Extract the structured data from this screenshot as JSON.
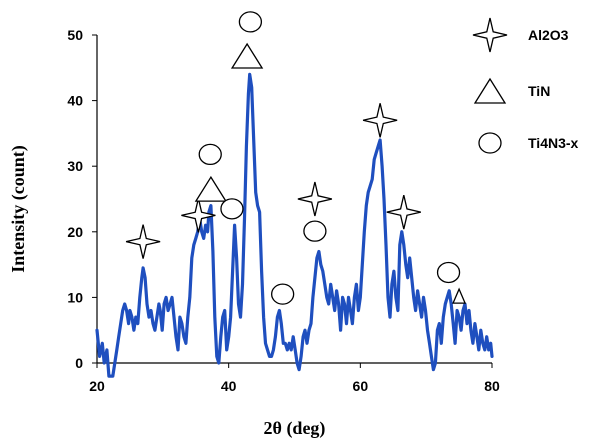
{
  "chart_data": {
    "type": "line",
    "title": "",
    "xlabel": "2θ (deg)",
    "ylabel": "Intensity (count)",
    "xlim": [
      20,
      80
    ],
    "ylim": [
      0,
      50
    ],
    "xticks": [
      20,
      40,
      60,
      80
    ],
    "yticks": [
      0,
      10,
      20,
      30,
      40,
      50
    ],
    "grid": false,
    "legend_position": "top-right",
    "line_color": "#1f4fbf",
    "marker_color": "#000000",
    "legend": [
      {
        "label": "Al2O3",
        "shape": "star4"
      },
      {
        "label": "TiN",
        "shape": "triangle"
      },
      {
        "label": "Ti4N3-x",
        "shape": "circle"
      }
    ],
    "series": [
      {
        "color": "#1f4fbf",
        "points": [
          [
            20.0,
            5
          ],
          [
            20.4,
            1
          ],
          [
            20.8,
            3
          ],
          [
            21.1,
            0
          ],
          [
            21.5,
            2
          ],
          [
            21.8,
            -2
          ],
          [
            22.1,
            -2
          ],
          [
            22.4,
            -2
          ],
          [
            22.7,
            0
          ],
          [
            23.0,
            2
          ],
          [
            23.3,
            4
          ],
          [
            23.6,
            6
          ],
          [
            23.9,
            8
          ],
          [
            24.2,
            9
          ],
          [
            24.5,
            8
          ],
          [
            24.8,
            6
          ],
          [
            25.0,
            8
          ],
          [
            25.3,
            7
          ],
          [
            25.6,
            5
          ],
          [
            25.9,
            7
          ],
          [
            26.2,
            6
          ],
          [
            26.5,
            10
          ],
          [
            26.8,
            13
          ],
          [
            27.0,
            14.5
          ],
          [
            27.3,
            13
          ],
          [
            27.6,
            9
          ],
          [
            27.9,
            7
          ],
          [
            28.2,
            8
          ],
          [
            28.5,
            6
          ],
          [
            28.8,
            5
          ],
          [
            29.1,
            7
          ],
          [
            29.4,
            9
          ],
          [
            29.6,
            8
          ],
          [
            29.9,
            5
          ],
          [
            30.2,
            9
          ],
          [
            30.5,
            10
          ],
          [
            30.8,
            8
          ],
          [
            31.1,
            9
          ],
          [
            31.4,
            10
          ],
          [
            31.7,
            7
          ],
          [
            32.0,
            4
          ],
          [
            32.3,
            2
          ],
          [
            32.6,
            7
          ],
          [
            32.9,
            6
          ],
          [
            33.2,
            4
          ],
          [
            33.5,
            3
          ],
          [
            33.8,
            7
          ],
          [
            34.1,
            10
          ],
          [
            34.4,
            16
          ],
          [
            34.7,
            18
          ],
          [
            35.0,
            19
          ],
          [
            35.3,
            20
          ],
          [
            35.6,
            22
          ],
          [
            35.9,
            20
          ],
          [
            36.2,
            19
          ],
          [
            36.5,
            21
          ],
          [
            36.8,
            20
          ],
          [
            37.0,
            23
          ],
          [
            37.3,
            24
          ],
          [
            37.6,
            17
          ],
          [
            37.9,
            7
          ],
          [
            38.2,
            1
          ],
          [
            38.5,
            0
          ],
          [
            38.8,
            4
          ],
          [
            39.1,
            7
          ],
          [
            39.4,
            8
          ],
          [
            39.7,
            2
          ],
          [
            40.0,
            4
          ],
          [
            40.3,
            7
          ],
          [
            40.6,
            14
          ],
          [
            40.9,
            21
          ],
          [
            41.2,
            16
          ],
          [
            41.5,
            9
          ],
          [
            41.8,
            7
          ],
          [
            42.1,
            12
          ],
          [
            42.4,
            22
          ],
          [
            42.7,
            33
          ],
          [
            43.0,
            41
          ],
          [
            43.2,
            44
          ],
          [
            43.5,
            42
          ],
          [
            43.8,
            34
          ],
          [
            44.1,
            26
          ],
          [
            44.4,
            24
          ],
          [
            44.7,
            23
          ],
          [
            45.0,
            14
          ],
          [
            45.3,
            7
          ],
          [
            45.6,
            3
          ],
          [
            45.9,
            2
          ],
          [
            46.2,
            1
          ],
          [
            46.5,
            1
          ],
          [
            46.8,
            2
          ],
          [
            47.1,
            4
          ],
          [
            47.4,
            7
          ],
          [
            47.7,
            8
          ],
          [
            48.0,
            6
          ],
          [
            48.3,
            3
          ],
          [
            48.6,
            3
          ],
          [
            48.9,
            2
          ],
          [
            49.2,
            3
          ],
          [
            49.5,
            2
          ],
          [
            49.8,
            4
          ],
          [
            50.1,
            2
          ],
          [
            50.4,
            0
          ],
          [
            50.7,
            -1
          ],
          [
            51.0,
            1
          ],
          [
            51.3,
            4
          ],
          [
            51.6,
            5
          ],
          [
            51.9,
            3
          ],
          [
            52.2,
            5
          ],
          [
            52.5,
            6
          ],
          [
            52.8,
            10
          ],
          [
            53.1,
            13
          ],
          [
            53.4,
            16
          ],
          [
            53.7,
            17
          ],
          [
            54.0,
            15
          ],
          [
            54.3,
            14
          ],
          [
            54.6,
            12
          ],
          [
            54.9,
            10
          ],
          [
            55.2,
            9
          ],
          [
            55.5,
            12
          ],
          [
            55.8,
            10
          ],
          [
            56.1,
            8
          ],
          [
            56.4,
            11
          ],
          [
            56.7,
            9
          ],
          [
            57.0,
            5
          ],
          [
            57.3,
            10
          ],
          [
            57.6,
            9
          ],
          [
            57.9,
            6
          ],
          [
            58.2,
            10
          ],
          [
            58.5,
            8
          ],
          [
            58.8,
            6
          ],
          [
            59.1,
            10
          ],
          [
            59.4,
            12
          ],
          [
            59.7,
            8
          ],
          [
            60.0,
            10
          ],
          [
            60.3,
            15
          ],
          [
            60.6,
            20
          ],
          [
            60.9,
            24
          ],
          [
            61.2,
            26
          ],
          [
            61.5,
            27
          ],
          [
            61.8,
            28
          ],
          [
            62.1,
            31
          ],
          [
            62.4,
            32
          ],
          [
            62.7,
            33
          ],
          [
            63.0,
            34
          ],
          [
            63.3,
            30
          ],
          [
            63.6,
            25
          ],
          [
            63.9,
            18
          ],
          [
            64.2,
            10
          ],
          [
            64.5,
            7
          ],
          [
            64.8,
            12
          ],
          [
            65.1,
            14
          ],
          [
            65.4,
            10
          ],
          [
            65.7,
            8
          ],
          [
            66.0,
            18
          ],
          [
            66.3,
            20
          ],
          [
            66.6,
            18
          ],
          [
            66.9,
            15
          ],
          [
            67.2,
            13
          ],
          [
            67.5,
            16
          ],
          [
            67.8,
            13
          ],
          [
            68.1,
            10
          ],
          [
            68.4,
            8
          ],
          [
            68.7,
            11
          ],
          [
            69.0,
            9
          ],
          [
            69.3,
            7
          ],
          [
            69.6,
            10
          ],
          [
            69.9,
            8
          ],
          [
            70.2,
            5
          ],
          [
            70.5,
            3
          ],
          [
            70.8,
            1
          ],
          [
            71.1,
            -1
          ],
          [
            71.4,
            0
          ],
          [
            71.7,
            5
          ],
          [
            72.0,
            6
          ],
          [
            72.3,
            3
          ],
          [
            72.6,
            7
          ],
          [
            72.9,
            9
          ],
          [
            73.2,
            10
          ],
          [
            73.5,
            11
          ],
          [
            73.8,
            9
          ],
          [
            74.1,
            6
          ],
          [
            74.4,
            3
          ],
          [
            74.7,
            8
          ],
          [
            75.0,
            7
          ],
          [
            75.3,
            5
          ],
          [
            75.6,
            8
          ],
          [
            75.9,
            9
          ],
          [
            76.2,
            6
          ],
          [
            76.5,
            8
          ],
          [
            76.8,
            5
          ],
          [
            77.1,
            3
          ],
          [
            77.4,
            6
          ],
          [
            77.7,
            4
          ],
          [
            78.0,
            2
          ],
          [
            78.3,
            5
          ],
          [
            78.6,
            3
          ],
          [
            78.9,
            2
          ],
          [
            79.2,
            4
          ],
          [
            79.5,
            2
          ],
          [
            79.8,
            3
          ],
          [
            80.0,
            1
          ]
        ]
      }
    ],
    "markers": [
      {
        "shape": "star4",
        "x": 27.0,
        "y": 18.5
      },
      {
        "shape": "star4",
        "x": 35.4,
        "y": 22.5
      },
      {
        "shape": "triangle",
        "x": 37.3,
        "y": 26.5
      },
      {
        "shape": "circle",
        "x": 37.2,
        "y": 31.8
      },
      {
        "shape": "circle",
        "x": 40.5,
        "y": 23.5
      },
      {
        "shape": "triangle",
        "x": 42.8,
        "y": 46.8
      },
      {
        "shape": "circle",
        "x": 43.3,
        "y": 52.0
      },
      {
        "shape": "circle",
        "x": 48.2,
        "y": 10.5
      },
      {
        "shape": "star4",
        "x": 53.1,
        "y": 25.0
      },
      {
        "shape": "circle",
        "x": 53.1,
        "y": 20.1
      },
      {
        "shape": "star4",
        "x": 63.0,
        "y": 37.0
      },
      {
        "shape": "star4",
        "x": 66.6,
        "y": 23.0
      },
      {
        "shape": "circle",
        "x": 73.4,
        "y": 13.8
      },
      {
        "shape": "triangle-small",
        "x": 75.0,
        "y": 10.2
      }
    ]
  }
}
